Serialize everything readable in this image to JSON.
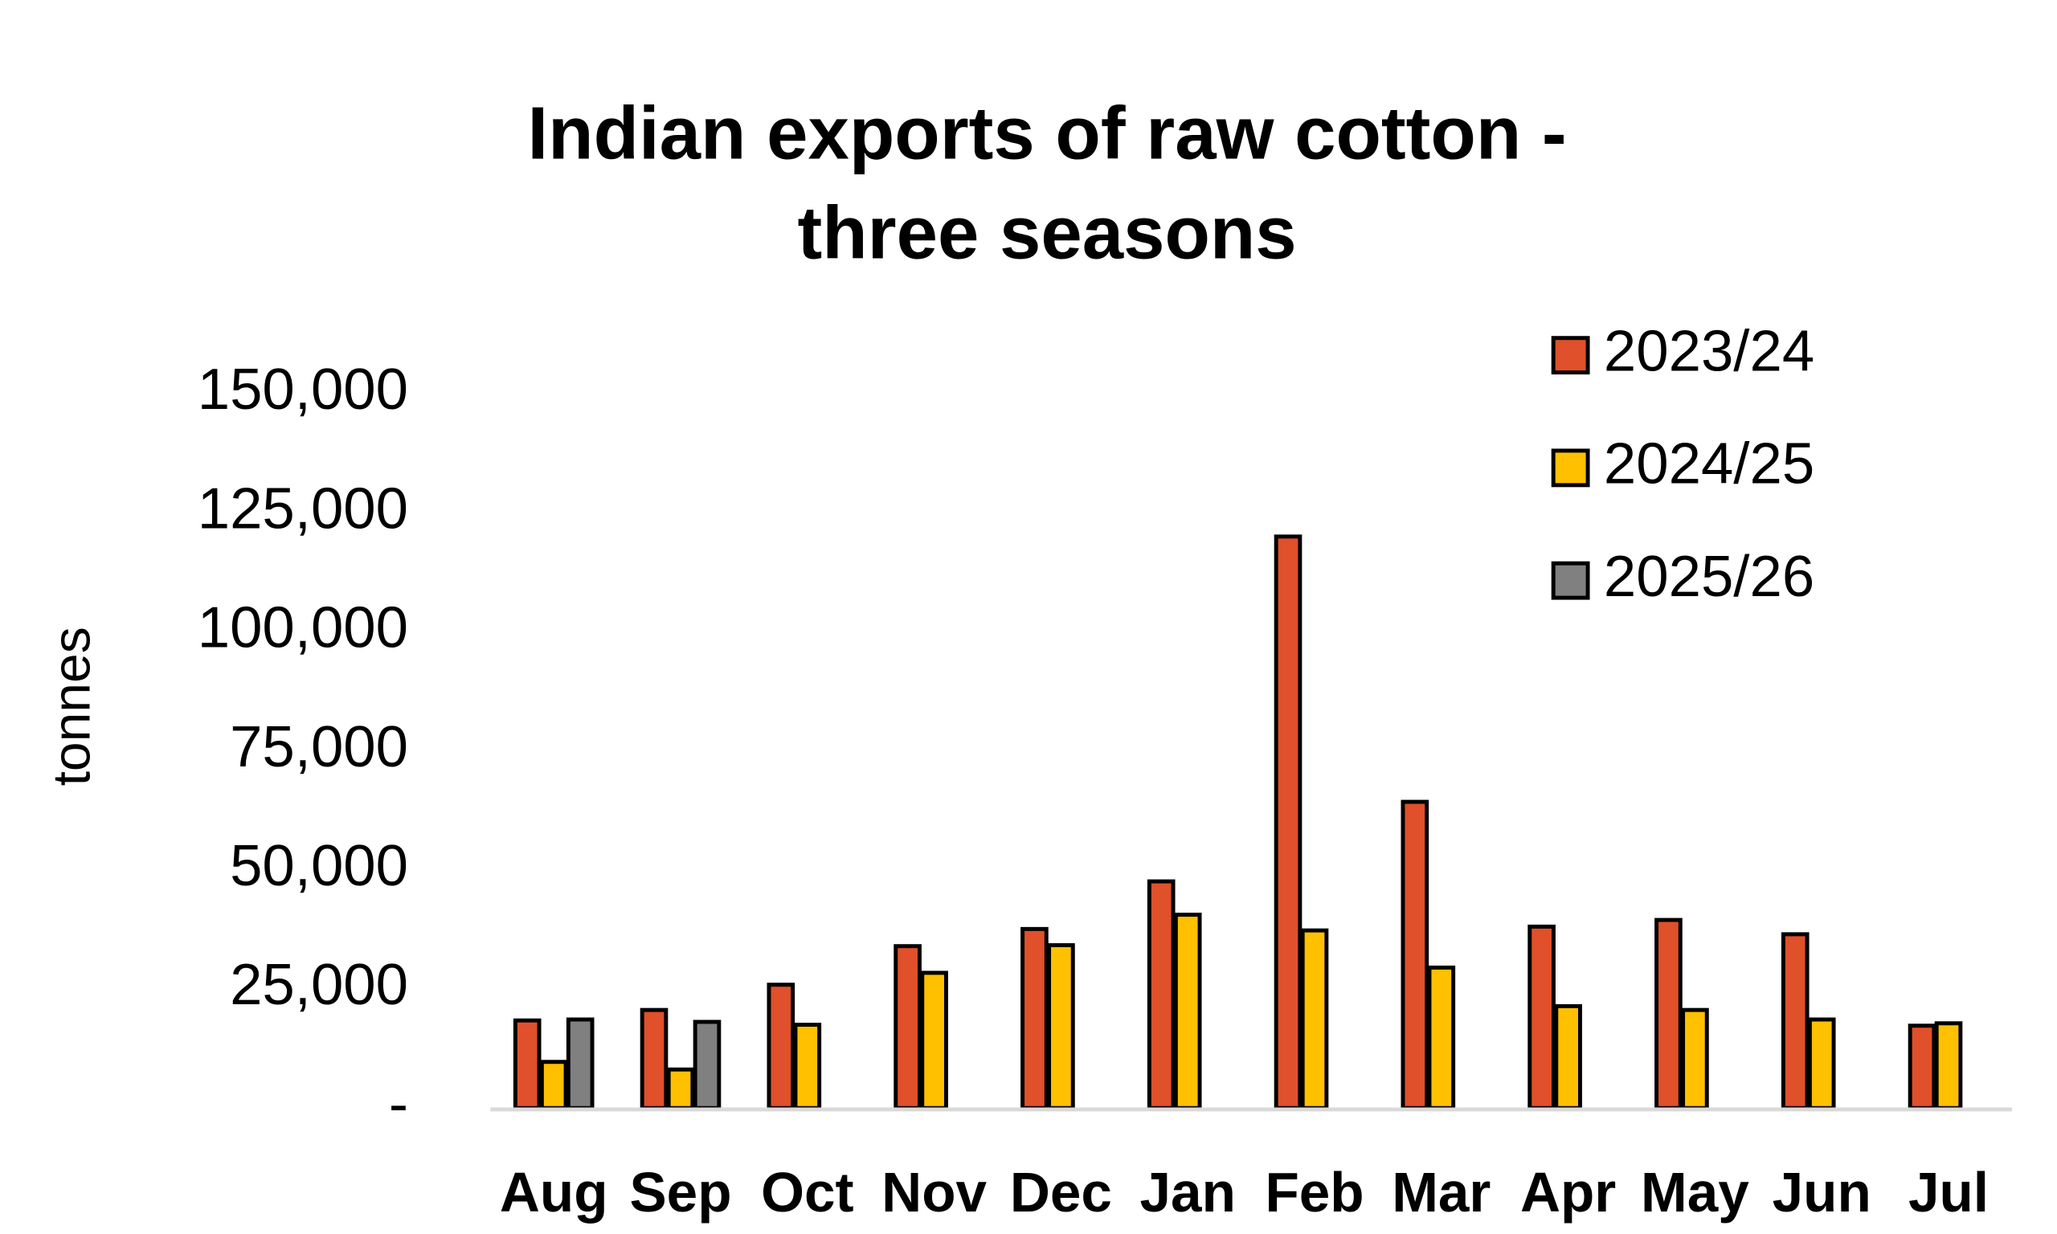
{
  "chart_data": {
    "type": "bar",
    "title_lines": [
      "Indian exports of raw cotton -",
      "three seasons"
    ],
    "y_label": "tonnes",
    "categories": [
      "Aug",
      "Sep",
      "Oct",
      "Nov",
      "Dec",
      "Jan",
      "Feb",
      "Mar",
      "Apr",
      "May",
      "Jun",
      "Jul"
    ],
    "series": [
      {
        "name": "2023/24",
        "color": "#e0502a",
        "values": [
          18400,
          20600,
          25900,
          34000,
          37600,
          47600,
          120000,
          64300,
          38100,
          39500,
          36500,
          17300
        ]
      },
      {
        "name": "2024/25",
        "color": "#ffc000",
        "values": [
          9700,
          8100,
          17500,
          28400,
          34200,
          40600,
          37300,
          29500,
          21400,
          20600,
          18600,
          17800
        ]
      },
      {
        "name": "2025/26",
        "color": "#808080",
        "values": [
          18600,
          18100,
          null,
          null,
          null,
          null,
          null,
          null,
          null,
          null,
          null,
          null
        ]
      }
    ],
    "ylim": [
      0,
      150000
    ],
    "yticks": [
      {
        "value": 0,
        "label": "-"
      },
      {
        "value": 25000,
        "label": "25,000"
      },
      {
        "value": 50000,
        "label": "50,000"
      },
      {
        "value": 75000,
        "label": "75,000"
      },
      {
        "value": 100000,
        "label": "100,000"
      },
      {
        "value": 125000,
        "label": "125,000"
      },
      {
        "value": 150000,
        "label": "150,000"
      }
    ],
    "grid": false,
    "legend": "top-right"
  }
}
